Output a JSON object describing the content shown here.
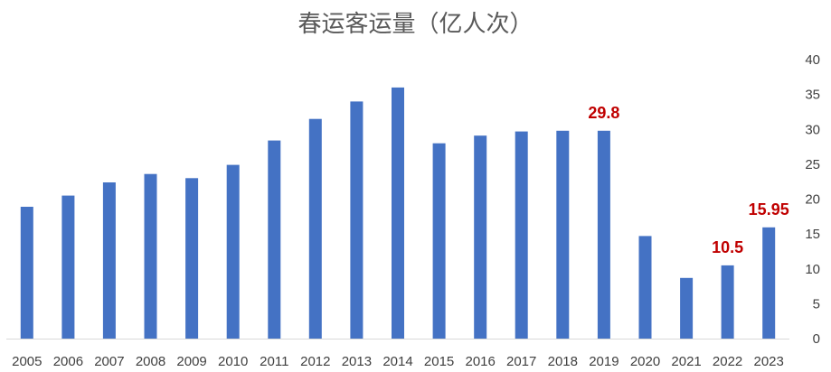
{
  "chart_data": {
    "type": "bar",
    "title": "春运客运量（亿人次）",
    "categories": [
      "2005",
      "2006",
      "2007",
      "2008",
      "2009",
      "2010",
      "2011",
      "2012",
      "2013",
      "2014",
      "2015",
      "2016",
      "2017",
      "2018",
      "2019",
      "2020",
      "2021",
      "2022",
      "2023"
    ],
    "values": [
      18.9,
      20.5,
      22.4,
      23.6,
      23.0,
      24.9,
      28.4,
      31.5,
      34.0,
      36.0,
      28.0,
      29.1,
      29.7,
      29.8,
      29.8,
      14.7,
      8.7,
      10.5,
      15.95
    ],
    "data_labels": [
      {
        "category": "2019",
        "text": "29.8"
      },
      {
        "category": "2022",
        "text": "10.5"
      },
      {
        "category": "2023",
        "text": "15.95"
      }
    ],
    "ylim": [
      0,
      40
    ],
    "yticks": [
      0,
      5,
      10,
      15,
      20,
      25,
      30,
      35,
      40
    ],
    "y_axis_side": "right",
    "grid": false,
    "legend": "none",
    "colors": {
      "bar": "#4472c4",
      "label": "#c00000",
      "axis": "#d9d9d9",
      "text": "#404040"
    }
  }
}
